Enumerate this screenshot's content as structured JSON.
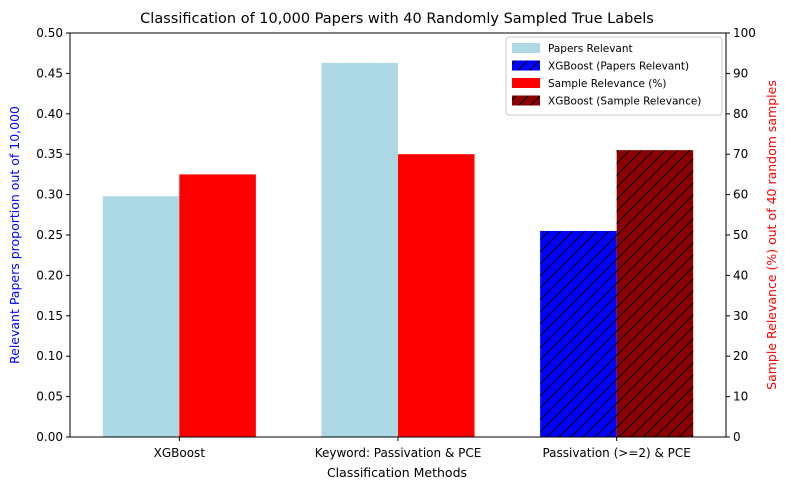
{
  "chart_data": {
    "type": "bar",
    "title": "Classification of 10,000 Papers with 40 Randomly Sampled True Labels",
    "xlabel": "Classification Methods",
    "ylabel_left": "Relevant Papers proportion out of 10,000",
    "ylabel_right": "Sample Relevance (%) out of 40 random samples",
    "categories": [
      "XGBoost",
      "Keyword: Passivation & PCE",
      "Passivation (>=2) & PCE"
    ],
    "ylim_left": [
      0,
      0.5
    ],
    "ylim_right": [
      0,
      100
    ],
    "yticks_left": [
      "0.00",
      "0.05",
      "0.10",
      "0.15",
      "0.20",
      "0.25",
      "0.30",
      "0.35",
      "0.40",
      "0.45",
      "0.50"
    ],
    "yticks_right": [
      "0",
      "10",
      "20",
      "30",
      "40",
      "50",
      "60",
      "70",
      "80",
      "90",
      "100"
    ],
    "grid": false,
    "legend_position": "top-right",
    "series": [
      {
        "name": "Papers Relevant",
        "axis": "left",
        "color": "#add8e6",
        "hatch": false,
        "values": [
          0.298,
          0.463,
          null
        ]
      },
      {
        "name": "XGBoost (Papers Relevant)",
        "axis": "left",
        "color": "#0000ff",
        "hatch": true,
        "values": [
          null,
          null,
          0.255
        ]
      },
      {
        "name": "Sample Relevance (%)",
        "axis": "right",
        "color": "#ff0000",
        "hatch": false,
        "values": [
          65,
          70,
          null
        ]
      },
      {
        "name": "XGBoost (Sample Relevance)",
        "axis": "right",
        "color": "#8b0000",
        "hatch": true,
        "values": [
          null,
          null,
          71
        ]
      }
    ],
    "colors": {
      "left_label": "#0000ff",
      "right_label": "#ff0000"
    }
  }
}
